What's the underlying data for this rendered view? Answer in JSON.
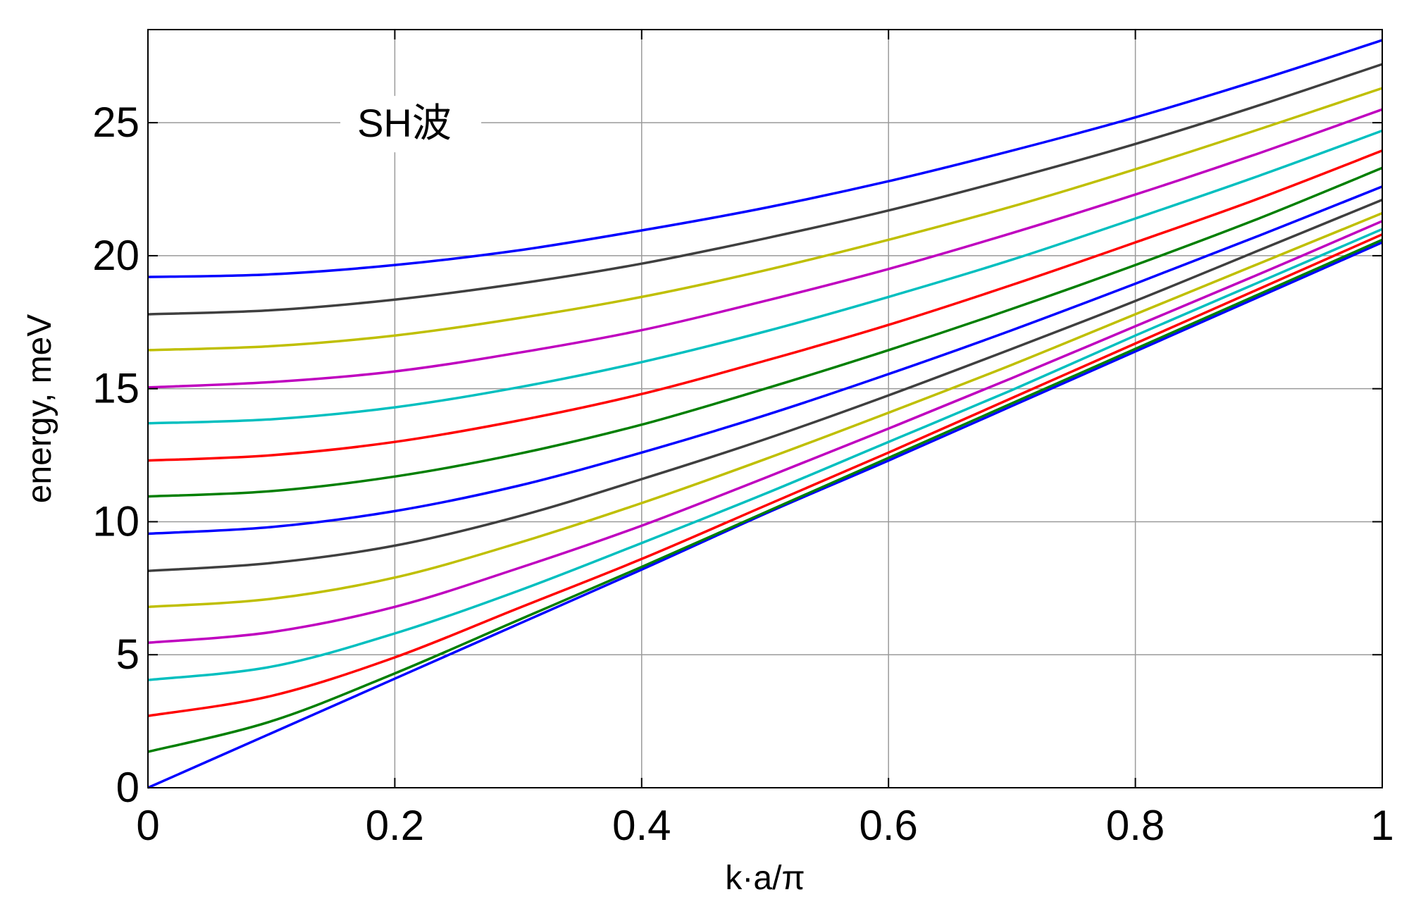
{
  "chart_data": {
    "type": "line",
    "title": "",
    "annotation": "SH波",
    "xlabel": "k·a/π",
    "ylabel": "energy, meV",
    "xlim": [
      0,
      1
    ],
    "ylim": [
      0,
      28.5
    ],
    "x_ticks": [
      "0",
      "0.2",
      "0.4",
      "0.6",
      "0.8",
      "1"
    ],
    "y_ticks": [
      "0",
      "5",
      "10",
      "15",
      "20",
      "25"
    ],
    "grid": true,
    "legend": "none",
    "x": [
      0,
      0.1,
      0.2,
      0.3,
      0.4,
      0.5,
      0.6,
      0.7,
      0.8,
      0.9,
      1.0
    ],
    "series": [
      {
        "color": "#0000ff",
        "values": [
          0.0,
          2.05,
          4.1,
          6.15,
          8.2,
          10.3,
          12.3,
          14.35,
          16.4,
          18.45,
          20.5
        ]
      },
      {
        "color": "#007f00",
        "values": [
          1.35,
          2.5,
          4.3,
          6.3,
          8.3,
          10.35,
          12.4,
          14.45,
          16.5,
          18.55,
          20.6
        ]
      },
      {
        "color": "#ff0000",
        "values": [
          2.7,
          3.45,
          4.9,
          6.75,
          8.6,
          10.6,
          12.6,
          14.65,
          16.7,
          18.75,
          20.8
        ]
      },
      {
        "color": "#00bfbf",
        "values": [
          4.05,
          4.55,
          5.8,
          7.4,
          9.2,
          11.05,
          13.0,
          14.95,
          17.0,
          19.0,
          21.0
        ]
      },
      {
        "color": "#bf00bf",
        "values": [
          5.45,
          5.85,
          6.8,
          8.25,
          9.85,
          11.65,
          13.5,
          15.4,
          17.35,
          19.3,
          21.3
        ]
      },
      {
        "color": "#bfbf00",
        "values": [
          6.8,
          7.1,
          7.9,
          9.2,
          10.7,
          12.35,
          14.1,
          15.9,
          17.8,
          19.7,
          21.6
        ]
      },
      {
        "color": "#3f3f3f",
        "values": [
          8.15,
          8.45,
          9.1,
          10.2,
          11.6,
          13.1,
          14.75,
          16.5,
          18.3,
          20.2,
          22.1
        ]
      },
      {
        "color": "#0000ff",
        "values": [
          9.55,
          9.8,
          10.4,
          11.35,
          12.6,
          14.0,
          15.55,
          17.2,
          18.95,
          20.75,
          22.6
        ]
      },
      {
        "color": "#007f00",
        "values": [
          10.95,
          11.15,
          11.7,
          12.55,
          13.65,
          15.0,
          16.45,
          18.0,
          19.65,
          21.4,
          23.3
        ]
      },
      {
        "color": "#ff0000",
        "values": [
          12.3,
          12.5,
          13.0,
          13.8,
          14.8,
          16.05,
          17.4,
          18.9,
          20.5,
          22.15,
          23.95
        ]
      },
      {
        "color": "#00bfbf",
        "values": [
          13.7,
          13.85,
          14.3,
          15.05,
          16.0,
          17.15,
          18.45,
          19.85,
          21.4,
          23.0,
          24.7
        ]
      },
      {
        "color": "#bf00bf",
        "values": [
          15.05,
          15.25,
          15.65,
          16.35,
          17.2,
          18.3,
          19.5,
          20.85,
          22.3,
          23.85,
          25.5
        ]
      },
      {
        "color": "#bfbf00",
        "values": [
          16.45,
          16.6,
          17.0,
          17.65,
          18.45,
          19.45,
          20.6,
          21.85,
          23.25,
          24.75,
          26.3
        ]
      },
      {
        "color": "#3f3f3f",
        "values": [
          17.8,
          17.95,
          18.35,
          18.95,
          19.7,
          20.65,
          21.7,
          22.9,
          24.2,
          25.65,
          27.2
        ]
      },
      {
        "color": "#0000ff",
        "values": [
          19.2,
          19.3,
          19.65,
          20.2,
          20.95,
          21.8,
          22.8,
          23.95,
          25.2,
          26.6,
          28.1
        ]
      }
    ]
  }
}
